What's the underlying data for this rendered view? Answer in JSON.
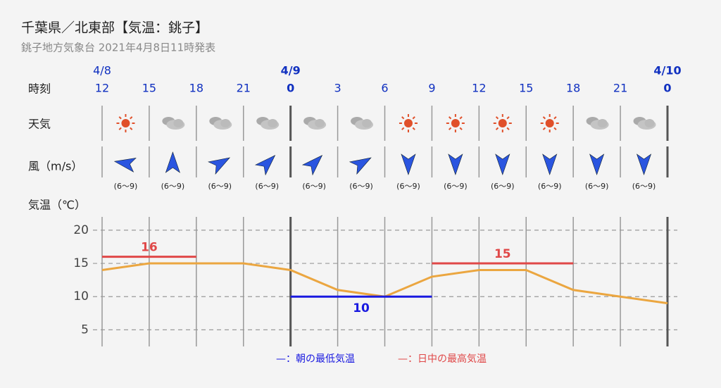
{
  "header": {
    "title": "千葉県／北東部【気温：銚子】",
    "subtitle": "銚子地方気象台 2021年4月8日11時発表"
  },
  "row_labels": {
    "time": "時刻",
    "weather": "天気",
    "wind": "風（m/s）",
    "temperature": "気温（℃）"
  },
  "weather_icons": [
    "sun",
    "cloud",
    "cloud",
    "cloud",
    "cloud",
    "cloud",
    "sun",
    "sun",
    "sun",
    "sun",
    "cloud",
    "cloud"
  ],
  "wind": {
    "directions": [
      280,
      0,
      60,
      45,
      45,
      60,
      180,
      180,
      180,
      180,
      180,
      180
    ],
    "speeds": [
      "(6〜9)",
      "(6〜9)",
      "(6〜9)",
      "(6〜9)",
      "(6〜9)",
      "(6〜9)",
      "(6〜9)",
      "(6〜9)",
      "(6〜9)",
      "(6〜9)",
      "(6〜9)",
      "(6〜9)"
    ],
    "color": "#2a55e0"
  },
  "chart_data": {
    "type": "line",
    "x": [
      12,
      15,
      18,
      21,
      24,
      27,
      30,
      33,
      36,
      39,
      42,
      45,
      48
    ],
    "values": [
      14,
      15,
      15,
      15,
      14,
      11,
      10,
      13,
      14,
      14,
      11,
      10,
      9
    ],
    "color": "#eba640",
    "xlim": [
      12,
      48
    ],
    "xticks": [
      {
        "value": 12,
        "label": "12"
      },
      {
        "value": 15,
        "label": "15"
      },
      {
        "value": 18,
        "label": "18"
      },
      {
        "value": 21,
        "label": "21"
      },
      {
        "value": 24,
        "label": "0"
      },
      {
        "value": 27,
        "label": "3"
      },
      {
        "value": 30,
        "label": "6"
      },
      {
        "value": 33,
        "label": "9"
      },
      {
        "value": 36,
        "label": "12"
      },
      {
        "value": 39,
        "label": "15"
      },
      {
        "value": 42,
        "label": "18"
      },
      {
        "value": 45,
        "label": "21"
      },
      {
        "value": 48,
        "label": "0"
      }
    ],
    "date_labels": [
      {
        "value": 12,
        "label": "4/8"
      },
      {
        "value": 24,
        "label": "4/9"
      },
      {
        "value": 48,
        "label": "4/10"
      }
    ],
    "ylim": [
      2.5,
      22
    ],
    "yticks": [
      5,
      10,
      15,
      20
    ],
    "grid": true,
    "ranges": [
      {
        "kind": "max",
        "value": 16,
        "x": [
          12,
          18
        ],
        "color": "#e04848"
      },
      {
        "kind": "min",
        "value": 10,
        "x": [
          24,
          33
        ],
        "color": "#1a1ae0"
      },
      {
        "kind": "max",
        "value": 15,
        "x": [
          33,
          42
        ],
        "color": "#e04848"
      }
    ],
    "legend": [
      {
        "dash": "—",
        "text": "：朝の最低気温",
        "color": "#1a1ae0"
      },
      {
        "dash": "—",
        "text": "：日中の最高気温",
        "color": "#e04848"
      }
    ]
  }
}
